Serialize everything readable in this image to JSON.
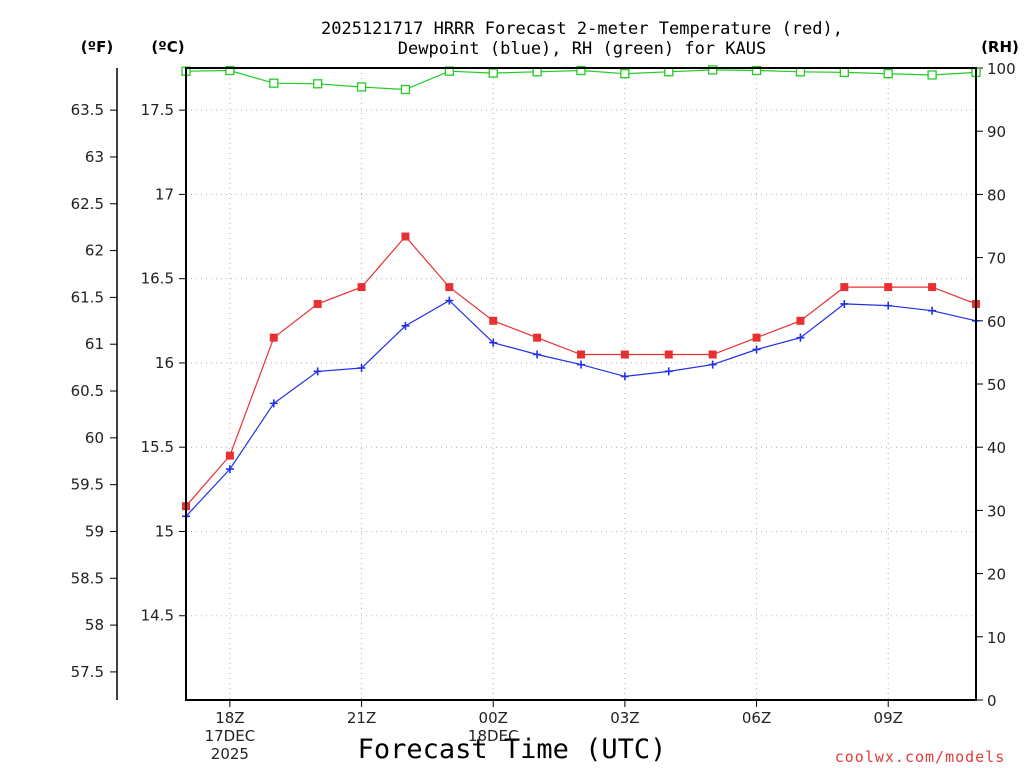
{
  "chart_data": {
    "type": "line",
    "title_line1": "2025121717 HRRR Forecast 2-meter Temperature (red),",
    "title_line2": "Dewpoint (blue), RH (green) for KAUS",
    "units": {
      "fahrenheit": "(ºF)",
      "celsius": "(ºC)",
      "rh": "(RH)"
    },
    "xlabel": "Forecast Time (UTC)",
    "credit": "coolwx.com/models",
    "x_hours": [
      17,
      18,
      19,
      20,
      21,
      22,
      23,
      24,
      25,
      26,
      27,
      28,
      29,
      30,
      31,
      32,
      33,
      34,
      35
    ],
    "xlim": [
      17,
      35
    ],
    "x_ticks": [
      {
        "hour": 18,
        "label": "18Z",
        "label2": "17DEC",
        "label3": "2025"
      },
      {
        "hour": 21,
        "label": "21Z"
      },
      {
        "hour": 24,
        "label": "00Z",
        "label2": "18DEC"
      },
      {
        "hour": 27,
        "label": "03Z"
      },
      {
        "hour": 30,
        "label": "06Z"
      },
      {
        "hour": 33,
        "label": "09Z"
      }
    ],
    "celsius_axis": {
      "range": [
        14.0,
        17.75
      ],
      "ticks": [
        "14.5",
        "15",
        "15.5",
        "16",
        "16.5",
        "17",
        "17.5"
      ]
    },
    "fahrenheit_axis": {
      "ticks": [
        "57.5",
        "58",
        "58.5",
        "59",
        "59.5",
        "60",
        "60.5",
        "61",
        "61.5",
        "62",
        "62.5",
        "63",
        "63.5"
      ]
    },
    "rh_axis": {
      "range": [
        0,
        100
      ],
      "ticks": [
        "0",
        "10",
        "20",
        "30",
        "40",
        "50",
        "60",
        "70",
        "80",
        "90",
        "100"
      ]
    },
    "series": [
      {
        "name": "Temperature",
        "axis": "celsius",
        "color": "#e83030",
        "marker": "filled-square",
        "values": [
          15.15,
          15.45,
          16.15,
          16.35,
          16.45,
          16.75,
          16.45,
          16.25,
          16.15,
          16.05,
          16.05,
          16.05,
          16.05,
          16.15,
          16.25,
          16.45,
          16.45,
          16.45,
          16.35
        ]
      },
      {
        "name": "Dewpoint",
        "axis": "celsius",
        "color": "#2030e8",
        "marker": "plus",
        "values": [
          15.09,
          15.37,
          15.76,
          15.95,
          15.97,
          16.22,
          16.37,
          16.12,
          16.05,
          15.99,
          15.92,
          15.95,
          15.99,
          16.08,
          16.15,
          16.35,
          16.34,
          16.31,
          16.25
        ]
      },
      {
        "name": "RH",
        "axis": "rh",
        "color": "#22cc22",
        "marker": "open-square",
        "values": [
          99.5,
          99.6,
          97.6,
          97.5,
          97.0,
          96.6,
          99.5,
          99.2,
          99.4,
          99.6,
          99.1,
          99.4,
          99.7,
          99.6,
          99.4,
          99.3,
          99.1,
          98.9,
          99.3
        ]
      }
    ]
  }
}
